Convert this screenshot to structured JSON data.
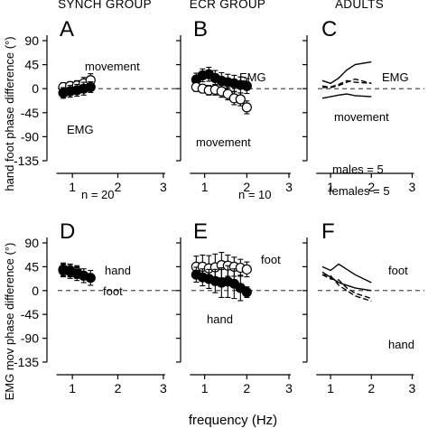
{
  "headers": [
    "SYNCH GROUP",
    "ECR GROUP",
    "ADULTS"
  ],
  "ylabel_top": "hand foot phase difference (°)",
  "ylabel_bottom": "EMG mov phase difference (°)",
  "xlabel": "frequency (Hz)",
  "chart_data": [
    {
      "panel": "A",
      "type": "scatter",
      "xlim": [
        0.6,
        3.3
      ],
      "ylim": [
        -135,
        90
      ],
      "xticks": [
        1,
        2,
        3
      ],
      "yticks": [
        90,
        45,
        0,
        -45,
        -90,
        -135
      ],
      "annotations": [
        "movement",
        "EMG",
        "n = 20"
      ],
      "series": [
        {
          "name": "movement",
          "marker": "open",
          "x": [
            0.8,
            0.95,
            1.1,
            1.25,
            1.4
          ],
          "y": [
            3,
            5,
            6,
            10,
            16
          ],
          "err": [
            8,
            8,
            9,
            11,
            12
          ]
        },
        {
          "name": "EMG",
          "marker": "filled",
          "x": [
            0.8,
            0.95,
            1.1,
            1.25,
            1.4
          ],
          "y": [
            -8,
            -5,
            -3,
            0,
            3
          ],
          "err": [
            10,
            11,
            11,
            12,
            10
          ]
        }
      ]
    },
    {
      "panel": "B",
      "type": "scatter",
      "xlim": [
        0.6,
        3.3
      ],
      "ylim": [
        -135,
        90
      ],
      "xticks": [
        1,
        2,
        3
      ],
      "yticks": [
        90,
        45,
        0,
        -45,
        -90,
        -135
      ],
      "annotations": [
        "EMG",
        "movement",
        "n = 10"
      ],
      "series": [
        {
          "name": "EMG",
          "marker": "filled",
          "x": [
            0.8,
            0.95,
            1.1,
            1.25,
            1.4,
            1.55,
            1.7,
            1.85,
            2.0
          ],
          "y": [
            17,
            25,
            27,
            20,
            15,
            12,
            10,
            7,
            5
          ],
          "err": [
            12,
            12,
            13,
            14,
            15,
            15,
            15,
            15,
            14
          ]
        },
        {
          "name": "movement",
          "marker": "open",
          "x": [
            0.8,
            0.95,
            1.1,
            1.25,
            1.4,
            1.55,
            1.7,
            1.85,
            2.0
          ],
          "y": [
            3,
            0,
            -3,
            -2,
            -5,
            -10,
            -18,
            -20,
            -35
          ],
          "err": [
            8,
            8,
            9,
            10,
            11,
            11,
            12,
            12,
            12
          ]
        }
      ]
    },
    {
      "panel": "C",
      "type": "line",
      "xlim": [
        0.6,
        3.3
      ],
      "ylim": [
        -135,
        90
      ],
      "xticks": [
        1,
        2,
        3
      ],
      "yticks": [
        90,
        45,
        0,
        -45,
        -90,
        -135
      ],
      "annotations": [
        "EMG",
        "movement",
        "males = 5",
        "females = 5"
      ],
      "series": [
        {
          "style": "solid",
          "x": [
            0.8,
            1.0,
            1.2,
            1.4,
            1.6,
            2.0
          ],
          "y": [
            15,
            10,
            20,
            35,
            45,
            50
          ]
        },
        {
          "style": "dashed",
          "x": [
            0.8,
            1.0,
            1.2,
            1.4,
            1.6,
            2.0
          ],
          "y": [
            2,
            3,
            8,
            15,
            12,
            10
          ]
        },
        {
          "style": "dashed",
          "x": [
            0.8,
            1.0,
            1.2,
            1.4,
            1.6,
            2.0
          ],
          "y": [
            5,
            2,
            6,
            12,
            18,
            10
          ]
        },
        {
          "style": "solid",
          "x": [
            0.8,
            1.0,
            1.2,
            1.4,
            1.6,
            2.0
          ],
          "y": [
            -18,
            -15,
            -12,
            -10,
            -13,
            -15
          ]
        }
      ]
    },
    {
      "panel": "D",
      "type": "scatter",
      "xlim": [
        0.6,
        3.3
      ],
      "ylim": [
        -135,
        90
      ],
      "xticks": [
        1,
        2,
        3
      ],
      "yticks": [
        90,
        45,
        0,
        -45,
        -90,
        -135
      ],
      "annotations": [
        "hand",
        "foot"
      ],
      "series": [
        {
          "name": "hand",
          "marker": "open",
          "x": [
            0.8,
            0.95,
            1.1
          ],
          "y": [
            40,
            38,
            35
          ],
          "err": [
            12,
            12,
            12
          ]
        },
        {
          "name": "foot",
          "marker": "filled",
          "x": [
            0.8,
            0.95,
            1.1,
            1.25,
            1.4
          ],
          "y": [
            38,
            36,
            32,
            28,
            24
          ],
          "err": [
            12,
            13,
            13,
            13,
            14
          ]
        }
      ]
    },
    {
      "panel": "E",
      "type": "scatter",
      "xlim": [
        0.6,
        3.3
      ],
      "ylim": [
        -135,
        90
      ],
      "xticks": [
        1,
        2,
        3
      ],
      "yticks": [
        90,
        45,
        0,
        -45,
        -90,
        -135
      ],
      "annotations": [
        "foot",
        "hand"
      ],
      "series": [
        {
          "name": "foot",
          "marker": "open",
          "x": [
            0.8,
            0.95,
            1.1,
            1.25,
            1.4,
            1.55,
            1.7,
            1.85,
            2.0
          ],
          "y": [
            45,
            45,
            42,
            44,
            48,
            47,
            45,
            43,
            40
          ],
          "err": [
            20,
            22,
            24,
            25,
            24,
            20,
            18,
            16,
            14
          ]
        },
        {
          "name": "hand",
          "marker": "filled",
          "x": [
            0.8,
            0.95,
            1.1,
            1.25,
            1.4,
            1.55,
            1.7,
            1.85,
            2.0
          ],
          "y": [
            30,
            25,
            22,
            18,
            15,
            17,
            13,
            5,
            -3
          ],
          "err": [
            14,
            16,
            18,
            22,
            28,
            30,
            28,
            24,
            10
          ]
        }
      ]
    },
    {
      "panel": "F",
      "type": "line",
      "xlim": [
        0.6,
        3.3
      ],
      "ylim": [
        -135,
        90
      ],
      "xticks": [
        1,
        2,
        3
      ],
      "yticks": [
        90,
        45,
        0,
        -45,
        -90,
        -135
      ],
      "annotations": [
        "foot",
        "hand"
      ],
      "series": [
        {
          "style": "solid",
          "x": [
            0.8,
            1.0,
            1.2,
            1.4,
            1.6,
            2.0
          ],
          "y": [
            45,
            38,
            50,
            40,
            30,
            15
          ]
        },
        {
          "style": "solid",
          "x": [
            0.8,
            1.0,
            1.2,
            1.4,
            1.6,
            2.0
          ],
          "y": [
            35,
            25,
            15,
            10,
            5,
            0
          ]
        },
        {
          "style": "dashed",
          "x": [
            0.8,
            1.0,
            1.2,
            1.4,
            1.6,
            2.0
          ],
          "y": [
            30,
            22,
            20,
            5,
            -5,
            -15
          ]
        },
        {
          "style": "dashed",
          "x": [
            0.8,
            1.0,
            1.2,
            1.4,
            1.6,
            2.0
          ],
          "y": [
            30,
            28,
            10,
            0,
            -10,
            -20
          ]
        }
      ]
    }
  ]
}
